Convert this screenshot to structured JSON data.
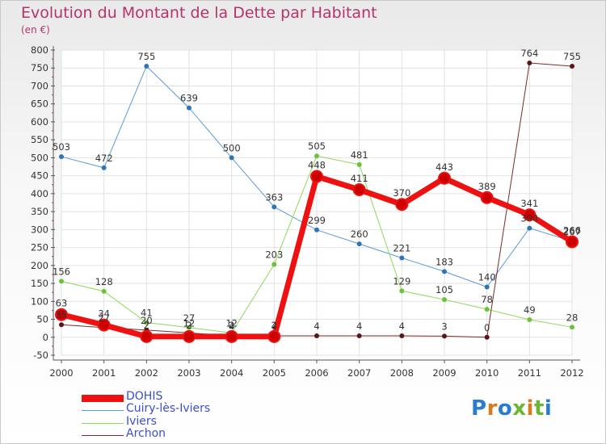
{
  "title": "Evolution du Montant de la Dette par Habitant",
  "unit": "(en €)",
  "brand": {
    "text": "Proxiti",
    "colors": [
      "#2a7bd4",
      "#d97a1e",
      "#2a7bd4",
      "#6bb534",
      "#d97a1e",
      "#6bb534",
      "#2a7bd4"
    ]
  },
  "chart_data": {
    "type": "line",
    "title": "Evolution du Montant de la Dette par Habitant",
    "ylabel": "(en €)",
    "xlabel": "",
    "x": [
      "2000",
      "2001",
      "2002",
      "2003",
      "2004",
      "2005",
      "2006",
      "2007",
      "2008",
      "2009",
      "2010",
      "2011",
      "2012"
    ],
    "ylim": [
      -50,
      800
    ],
    "yticks": [
      "-50",
      "0",
      "50",
      "100",
      "150",
      "200",
      "250",
      "300",
      "350",
      "400",
      "450",
      "500",
      "550",
      "600",
      "650",
      "700",
      "750",
      "800"
    ],
    "grid": true,
    "legend": "bottom-left",
    "series": [
      {
        "name": "DOHIS",
        "color": "#ee1111",
        "values": [
          63,
          34,
          2,
          2,
          2,
          2,
          448,
          411,
          370,
          443,
          389,
          341,
          266
        ],
        "labels": [
          "63",
          "34",
          "2",
          "2",
          "2",
          "2",
          "448",
          "411",
          "370",
          "443",
          "389",
          "341",
          "266"
        ]
      },
      {
        "name": "Cuiry-lès-Iviers",
        "color": "#5b9bd5",
        "values": [
          503,
          472,
          755,
          639,
          500,
          363,
          299,
          260,
          221,
          183,
          140,
          304,
          267
        ],
        "labels": [
          "503",
          "472",
          "755",
          "639",
          "500",
          "363",
          "299",
          "260",
          "221",
          "183",
          "140",
          "304",
          "267"
        ]
      },
      {
        "name": "Iviers",
        "color": "#8ed857",
        "values": [
          156,
          128,
          41,
          27,
          12,
          203,
          505,
          481,
          129,
          105,
          78,
          49,
          28
        ],
        "labels": [
          "156",
          "128",
          "41",
          "27",
          "12",
          "203",
          "505",
          "481",
          "129",
          "105",
          "78",
          "49",
          "28"
        ]
      },
      {
        "name": "Archon",
        "color": "#7a2a2a",
        "values": [
          35,
          27,
          20,
          12,
          4,
          4,
          4,
          4,
          4,
          3,
          0,
          764,
          755
        ],
        "labels": [
          "35",
          "27",
          "20",
          "12",
          "4",
          "4",
          "4",
          "4",
          "4",
          "3",
          "0",
          "764",
          "755"
        ]
      }
    ]
  }
}
